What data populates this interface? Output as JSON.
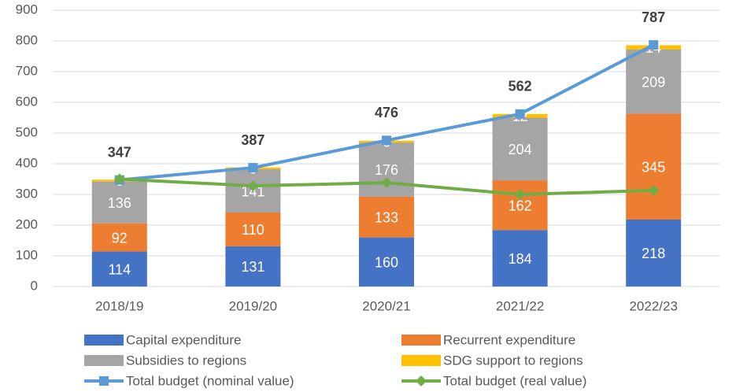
{
  "chart_data": {
    "type": "bar",
    "categories": [
      "2018/19",
      "2019/20",
      "2020/21",
      "2021/22",
      "2022/23"
    ],
    "series": [
      {
        "name": "Capital expenditure",
        "type": "bar",
        "color": "#4472c4",
        "values": [
          114,
          131,
          160,
          184,
          218
        ],
        "data_labels": true
      },
      {
        "name": "Recurrent expenditure",
        "type": "bar",
        "color": "#ed7d31",
        "values": [
          92,
          110,
          133,
          162,
          345
        ],
        "data_labels": true
      },
      {
        "name": "Subsidies to regions",
        "type": "bar",
        "color": "#a5a5a5",
        "values": [
          136,
          141,
          176,
          204,
          209
        ],
        "data_labels": true
      },
      {
        "name": "SDG support to regions",
        "type": "bar",
        "color": "#ffc000",
        "values": [
          6,
          6,
          6,
          12,
          14
        ],
        "data_labels": true
      },
      {
        "name": "Total budget (nominal value)",
        "type": "line",
        "marker": "square",
        "color": "#5b9bd5",
        "values": [
          347,
          387,
          476,
          562,
          787
        ],
        "data_labels": true
      },
      {
        "name": "Total budget (real value)",
        "type": "line",
        "marker": "diamond",
        "color": "#70ad47",
        "values": [
          350,
          328,
          338,
          300,
          313
        ],
        "data_labels": false
      }
    ],
    "ylim": [
      0,
      900
    ],
    "yticks": [
      0,
      100,
      200,
      300,
      400,
      500,
      600,
      700,
      800,
      900
    ],
    "grid": true,
    "stacked": true,
    "legend": "bottom"
  }
}
